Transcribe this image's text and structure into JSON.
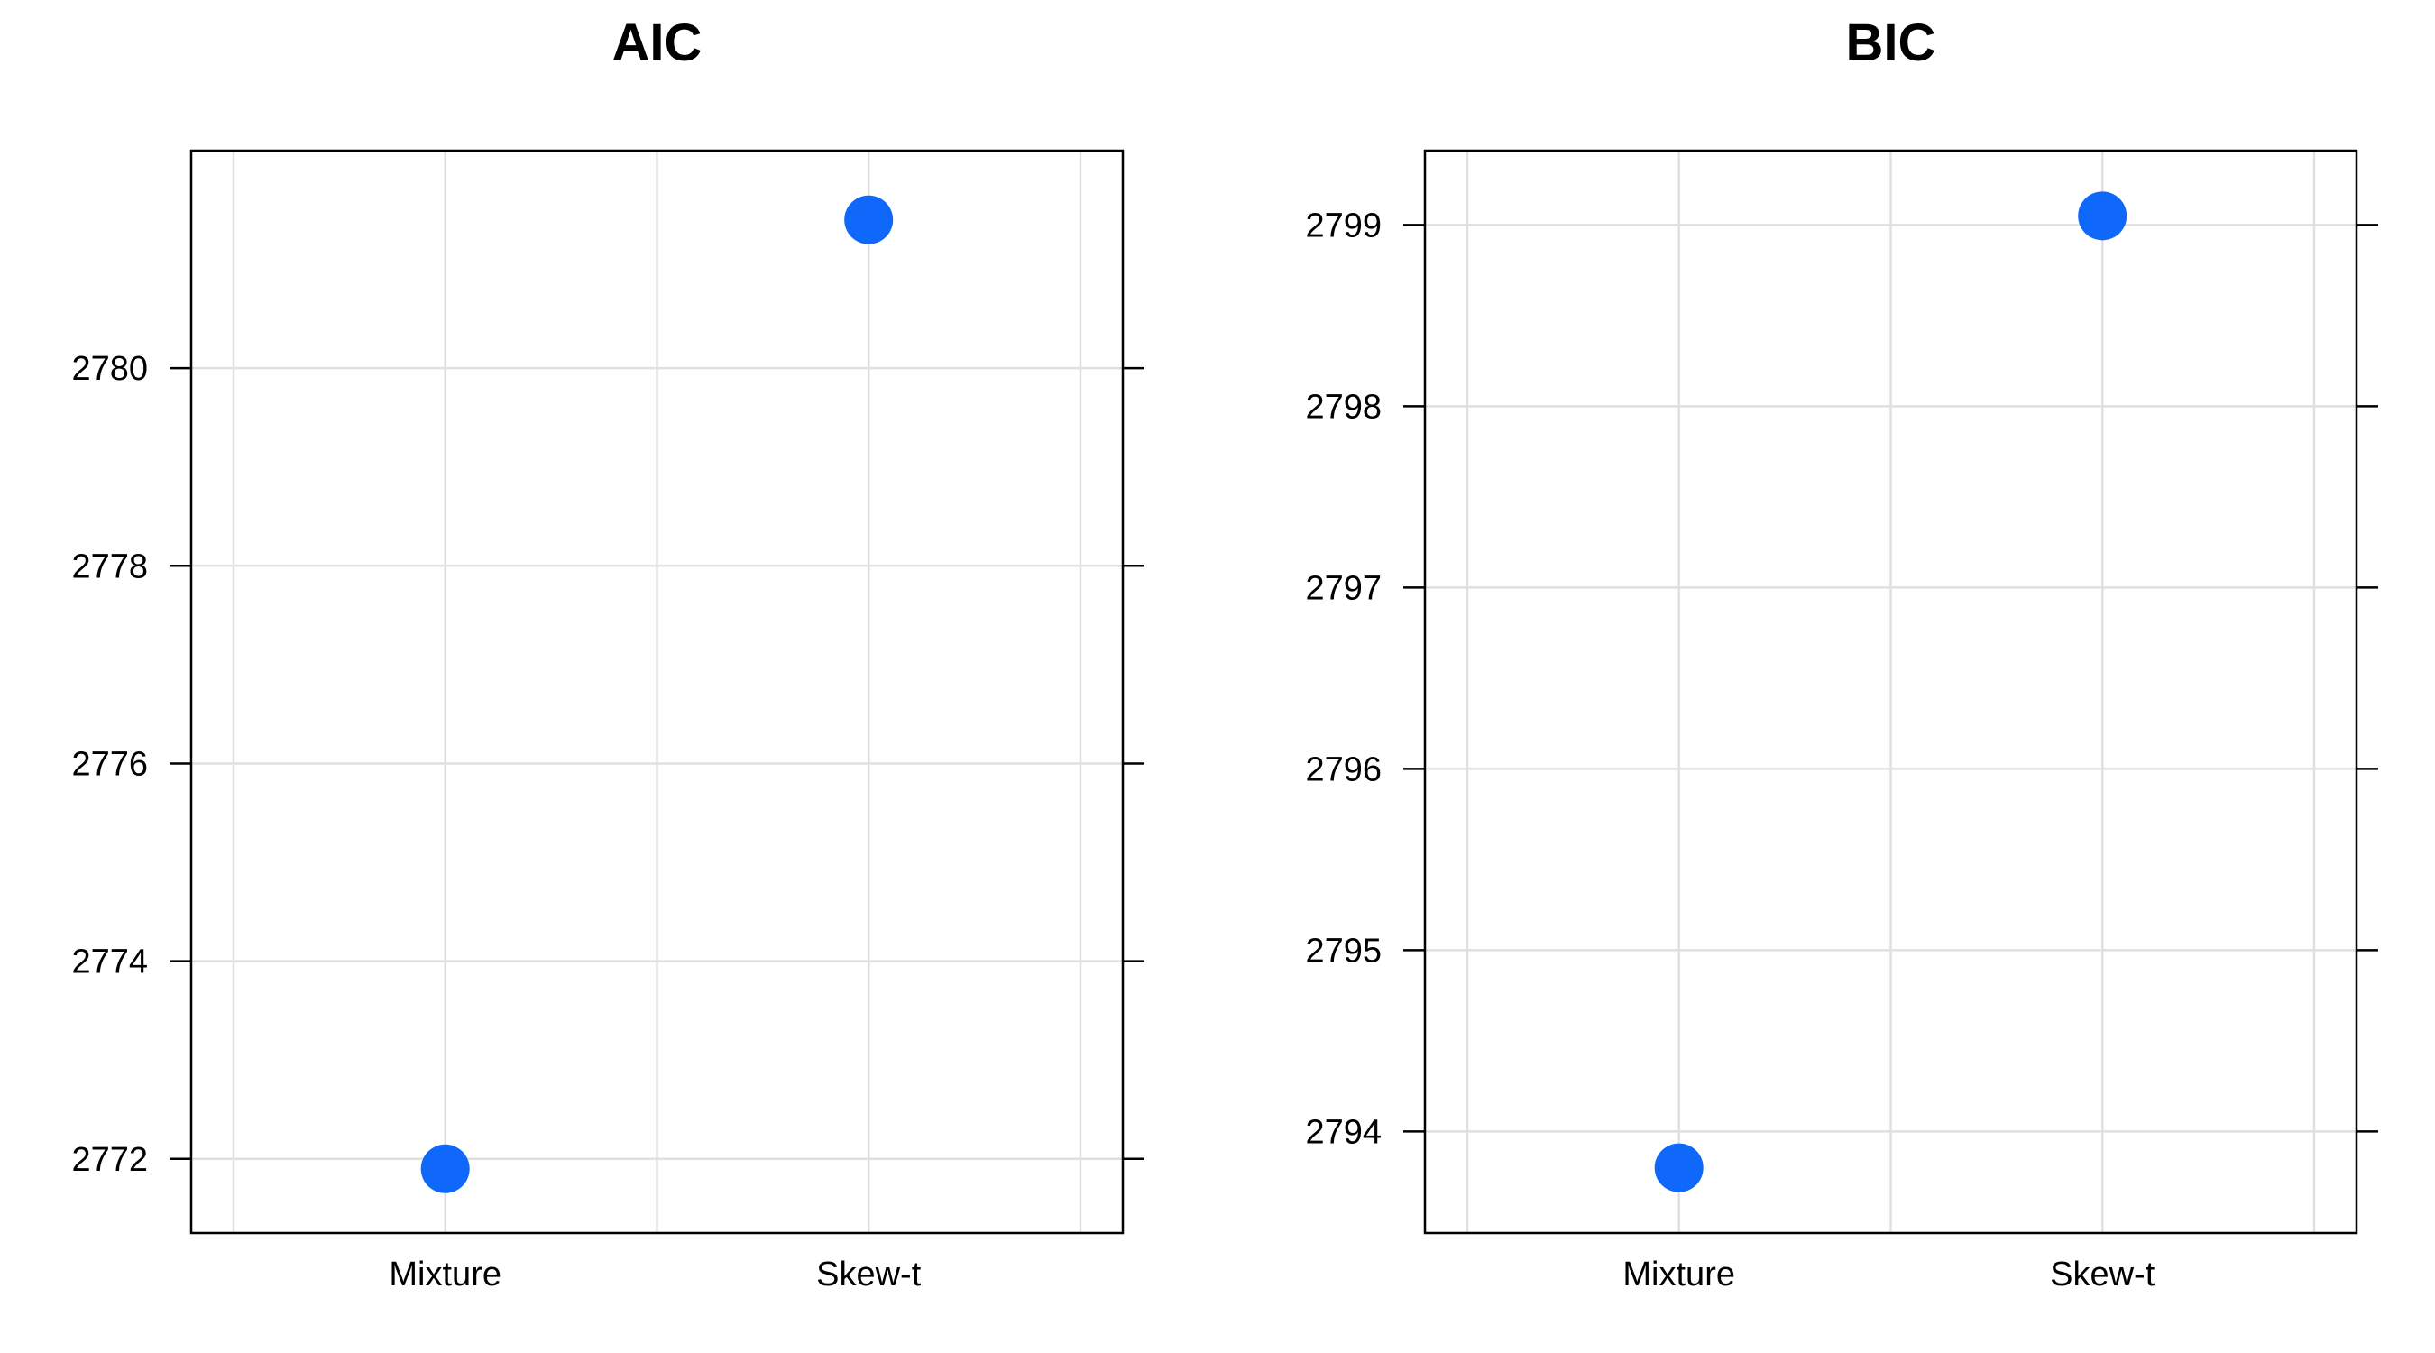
{
  "chart_data": [
    {
      "type": "scatter",
      "title": "AIC",
      "xlabel": "",
      "ylabel": "",
      "categories": [
        "Mixture",
        "Skew-t"
      ],
      "values": [
        2771.9,
        2781.5
      ],
      "yticks": [
        "2772",
        "2774",
        "2776",
        "2778",
        "2780"
      ],
      "ylim": [
        2771.25,
        2782.2
      ],
      "grid": true,
      "point_color": "#0f68fa"
    },
    {
      "type": "scatter",
      "title": "BIC",
      "xlabel": "",
      "ylabel": "",
      "categories": [
        "Mixture",
        "Skew-t"
      ],
      "values": [
        2793.8,
        2799.05
      ],
      "yticks": [
        "2794",
        "2795",
        "2796",
        "2797",
        "2798",
        "2799"
      ],
      "ylim": [
        2793.44,
        2799.41
      ],
      "grid": true,
      "point_color": "#0f68fa"
    }
  ]
}
